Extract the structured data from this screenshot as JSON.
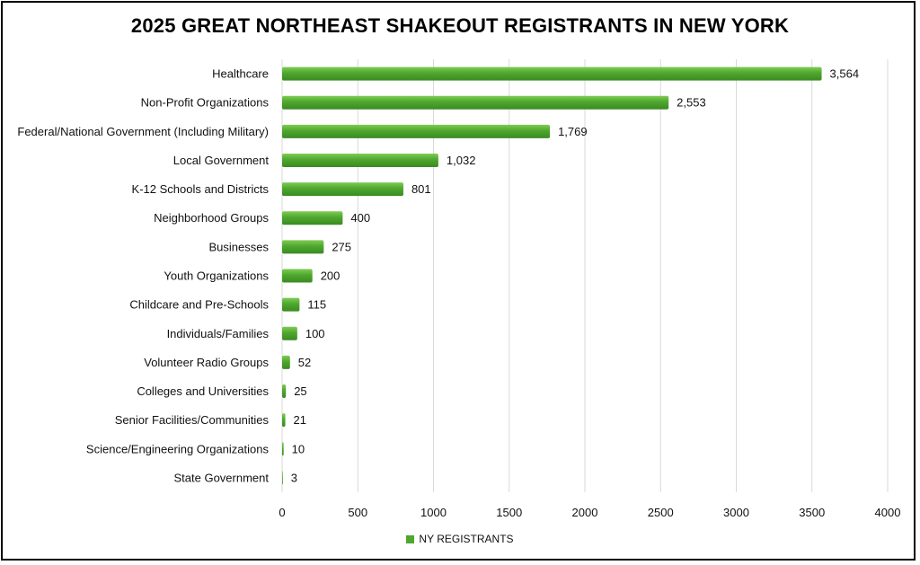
{
  "chart_data": {
    "type": "bar",
    "orientation": "horizontal",
    "title": "2025 GREAT NORTHEAST SHAKEOUT REGISTRANTS IN NEW YORK",
    "categories": [
      "Healthcare",
      "Non-Profit Organizations",
      "Federal/National Government (Including Military)",
      "Local Government",
      "K-12 Schools and Districts",
      "Neighborhood Groups",
      "Businesses",
      "Youth Organizations",
      "Childcare and Pre-Schools",
      "Individuals/Families",
      "Volunteer Radio Groups",
      "Colleges and Universities",
      "Senior Facilities/Communities",
      "Science/Engineering Organizations",
      "State Government"
    ],
    "series": [
      {
        "name": "NY REGISTRANTS",
        "values": [
          3564,
          2553,
          1769,
          1032,
          801,
          400,
          275,
          200,
          115,
          100,
          52,
          25,
          21,
          10,
          3
        ],
        "value_labels": [
          "3,564",
          "2,553",
          "1,769",
          "1,032",
          "801",
          "400",
          "275",
          "200",
          "115",
          "100",
          "52",
          "25",
          "21",
          "10",
          "3"
        ],
        "color": "#4ea72e"
      }
    ],
    "xlim": [
      0,
      4000
    ],
    "xticks": [
      0,
      500,
      1000,
      1500,
      2000,
      2500,
      3000,
      3500,
      4000
    ],
    "grid": "vertical",
    "legend_position": "bottom"
  }
}
